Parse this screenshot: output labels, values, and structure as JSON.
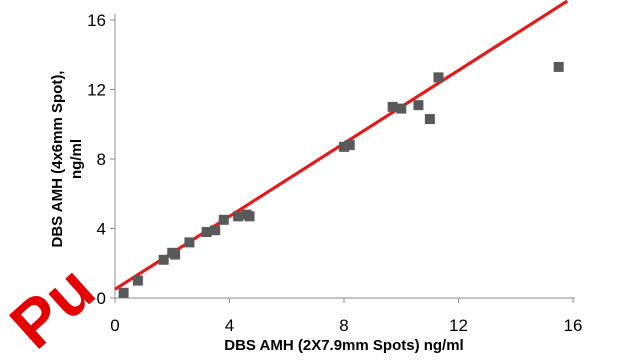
{
  "chart_data": {
    "type": "scatter",
    "title": "",
    "xlabel": "DBS AMH (2X7.9mm Spots) ng/ml",
    "ylabel": "DBS AMH (4x6mm Spot), ng/ml",
    "ylabel_lines": [
      "DBS AMH (4x6mm Spot),",
      "ng/ml"
    ],
    "xlim": [
      0,
      16
    ],
    "ylim": [
      0,
      16
    ],
    "xticks": [
      0,
      4,
      8,
      12,
      16
    ],
    "yticks": [
      0,
      4,
      8,
      12,
      16
    ],
    "grid": false,
    "legend": "none",
    "series": [
      {
        "marker": "square",
        "color": "#595959",
        "points": [
          [
            0.3,
            0.3
          ],
          [
            0.8,
            1.0
          ],
          [
            1.7,
            2.2
          ],
          [
            2.0,
            2.6
          ],
          [
            2.1,
            2.5
          ],
          [
            2.6,
            3.2
          ],
          [
            3.2,
            3.8
          ],
          [
            3.5,
            3.9
          ],
          [
            3.8,
            4.5
          ],
          [
            4.3,
            4.7
          ],
          [
            4.6,
            4.8
          ],
          [
            4.7,
            4.7
          ],
          [
            8.0,
            8.7
          ],
          [
            8.2,
            8.8
          ],
          [
            9.7,
            11.0
          ],
          [
            10.0,
            10.9
          ],
          [
            10.6,
            11.1
          ],
          [
            11.0,
            10.3
          ],
          [
            11.3,
            12.7
          ],
          [
            15.5,
            13.3
          ]
        ]
      }
    ],
    "trendline": {
      "type": "linear",
      "color": "#e31b1b",
      "slope": 1.05,
      "intercept": 0.5,
      "x_range": [
        0,
        15.8
      ]
    }
  },
  "watermark": {
    "text": "Pu",
    "color": "#e60000"
  }
}
